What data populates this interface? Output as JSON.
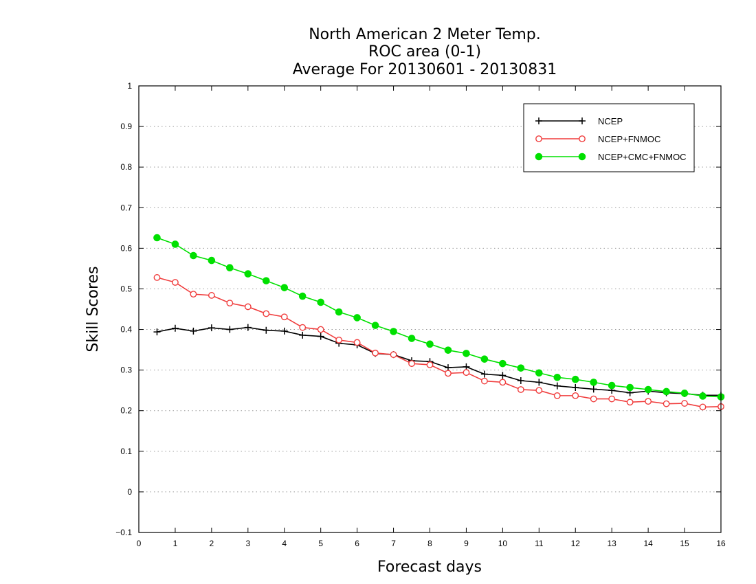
{
  "chart_data": {
    "type": "line",
    "title_lines": [
      "North American 2 Meter Temp.",
      "ROC area (0-1)",
      "Average For 20130601 - 20130831"
    ],
    "xlabel": "Forecast days",
    "ylabel": "Skill Scores",
    "xlim": [
      0,
      16
    ],
    "ylim": [
      -0.1,
      1
    ],
    "xticks": [
      "0",
      "1",
      "2",
      "3",
      "4",
      "5",
      "6",
      "7",
      "8",
      "9",
      "10",
      "11",
      "12",
      "13",
      "14",
      "15",
      "16"
    ],
    "yticks": [
      "-0.1",
      "0",
      "0.1",
      "0.2",
      "0.3",
      "0.4",
      "0.5",
      "0.6",
      "0.7",
      "0.8",
      "0.9",
      "1"
    ],
    "grid": "horizontal dotted",
    "legend_position": "top-right",
    "x": [
      0.5,
      1,
      1.5,
      2,
      2.5,
      3,
      3.5,
      4,
      4.5,
      5,
      5.5,
      6,
      6.5,
      7,
      7.5,
      8,
      8.5,
      9,
      9.5,
      10,
      10.5,
      11,
      11.5,
      12,
      12.5,
      13,
      13.5,
      14,
      14.5,
      15,
      15.5,
      16
    ],
    "series": [
      {
        "name": "NCEP",
        "color": "#000000",
        "marker": "plus",
        "values": [
          0.394,
          0.403,
          0.396,
          0.404,
          0.4,
          0.405,
          0.398,
          0.396,
          0.386,
          0.383,
          0.366,
          0.362,
          0.341,
          0.338,
          0.323,
          0.321,
          0.306,
          0.308,
          0.29,
          0.287,
          0.274,
          0.27,
          0.261,
          0.257,
          0.253,
          0.25,
          0.244,
          0.248,
          0.244,
          0.242,
          0.238,
          0.238
        ]
      },
      {
        "name": "NCEP+FNMOC",
        "color": "#f03c3c",
        "marker": "open-circle",
        "values": [
          0.528,
          0.516,
          0.487,
          0.484,
          0.465,
          0.456,
          0.439,
          0.431,
          0.405,
          0.4,
          0.374,
          0.368,
          0.342,
          0.338,
          0.316,
          0.313,
          0.292,
          0.294,
          0.273,
          0.27,
          0.252,
          0.25,
          0.237,
          0.237,
          0.229,
          0.229,
          0.221,
          0.223,
          0.217,
          0.218,
          0.209,
          0.21
        ]
      },
      {
        "name": "NCEP+CMC+FNMOC",
        "color": "#00e000",
        "marker": "filled-circle",
        "values": [
          0.626,
          0.61,
          0.582,
          0.57,
          0.552,
          0.537,
          0.52,
          0.503,
          0.482,
          0.467,
          0.443,
          0.429,
          0.41,
          0.395,
          0.378,
          0.364,
          0.349,
          0.341,
          0.327,
          0.316,
          0.305,
          0.293,
          0.282,
          0.277,
          0.27,
          0.262,
          0.257,
          0.252,
          0.247,
          0.243,
          0.236,
          0.234
        ]
      }
    ]
  }
}
